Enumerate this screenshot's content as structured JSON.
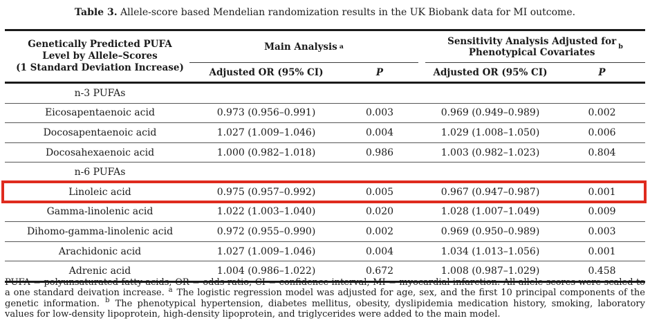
{
  "title": {
    "label": "Table 3.",
    "text": "Allele-score based Mendelian randomization results in the UK Biobank data for MI outcome."
  },
  "table": {
    "exposure_header": "Genetically Predicted PUFA\nLevel by Allele–Scores\n(1 Standard Deviation Increase)",
    "groups": [
      {
        "label": "Main Analysis",
        "sup": "a"
      },
      {
        "label": "Sensitivity Analysis Adjusted for\nPhenotypical Covariates",
        "sup": "b"
      }
    ],
    "subheaders": {
      "or_main": "Adjusted OR (95% CI)",
      "p_main": "P",
      "or_sens": "Adjusted OR (95% CI)",
      "p_sens": "P"
    },
    "rows": [
      {
        "type": "section",
        "label": "n-3 PUFAs",
        "or_main": "",
        "p_main": "",
        "or_sens": "",
        "p_sens": "",
        "highlight": false
      },
      {
        "type": "data",
        "label": "Eicosapentaenoic acid",
        "or_main": "0.973 (0.956–0.991)",
        "p_main": "0.003",
        "or_sens": "0.969 (0.949–0.989)",
        "p_sens": "0.002",
        "highlight": false
      },
      {
        "type": "data",
        "label": "Docosapentaenoic acid",
        "or_main": "1.027 (1.009–1.046)",
        "p_main": "0.004",
        "or_sens": "1.029 (1.008–1.050)",
        "p_sens": "0.006",
        "highlight": false
      },
      {
        "type": "data",
        "label": "Docosahexaenoic acid",
        "or_main": "1.000 (0.982–1.018)",
        "p_main": "0.986",
        "or_sens": "1.003 (0.982–1.023)",
        "p_sens": "0.804",
        "highlight": false
      },
      {
        "type": "section",
        "label": "n-6 PUFAs",
        "or_main": "",
        "p_main": "",
        "or_sens": "",
        "p_sens": "",
        "highlight": false
      },
      {
        "type": "data",
        "label": "Linoleic acid",
        "or_main": "0.975 (0.957–0.992)",
        "p_main": "0.005",
        "or_sens": "0.967 (0.947–0.987)",
        "p_sens": "0.001",
        "highlight": true
      },
      {
        "type": "data",
        "label": "Gamma-linolenic acid",
        "or_main": "1.022 (1.003–1.040)",
        "p_main": "0.020",
        "or_sens": "1.028 (1.007–1.049)",
        "p_sens": "0.009",
        "highlight": false
      },
      {
        "type": "data",
        "label": "Dihomo-gamma-linolenic acid",
        "or_main": "0.972 (0.955–0.990)",
        "p_main": "0.002",
        "or_sens": "0.969 (0.950–0.989)",
        "p_sens": "0.003",
        "highlight": false
      },
      {
        "type": "data",
        "label": "Arachidonic acid",
        "or_main": "1.027 (1.009–1.046)",
        "p_main": "0.004",
        "or_sens": "1.034 (1.013–1.056)",
        "p_sens": "0.001",
        "highlight": false
      },
      {
        "type": "data",
        "label": "Adrenic acid",
        "or_main": "1.004 (0.986–1.022)",
        "p_main": "0.672",
        "or_sens": "1.008 (0.987–1.029)",
        "p_sens": "0.458",
        "highlight": false
      }
    ]
  },
  "footnote": {
    "part1": "PUFA = polyunsaturated fatty acids; OR = odds ratio; CI = confidence interval; MI = myocardial infarction. All allele scores were scaled to a one standard deivation increase. ",
    "sup_a": "a",
    "part2": " The logistic regression model was adjusted for age, sex, and the first 10 principal components of the genetic information. ",
    "sup_b": "b",
    "part3": " The phenotypical hypertension, diabetes mellitus, obesity, dyslipidemia medication history, smoking, laboratory values for low-density lipoprotein, high-density lipoprotein, and triglycerides were added to the main model."
  },
  "highlight_color": "#df2b1e"
}
